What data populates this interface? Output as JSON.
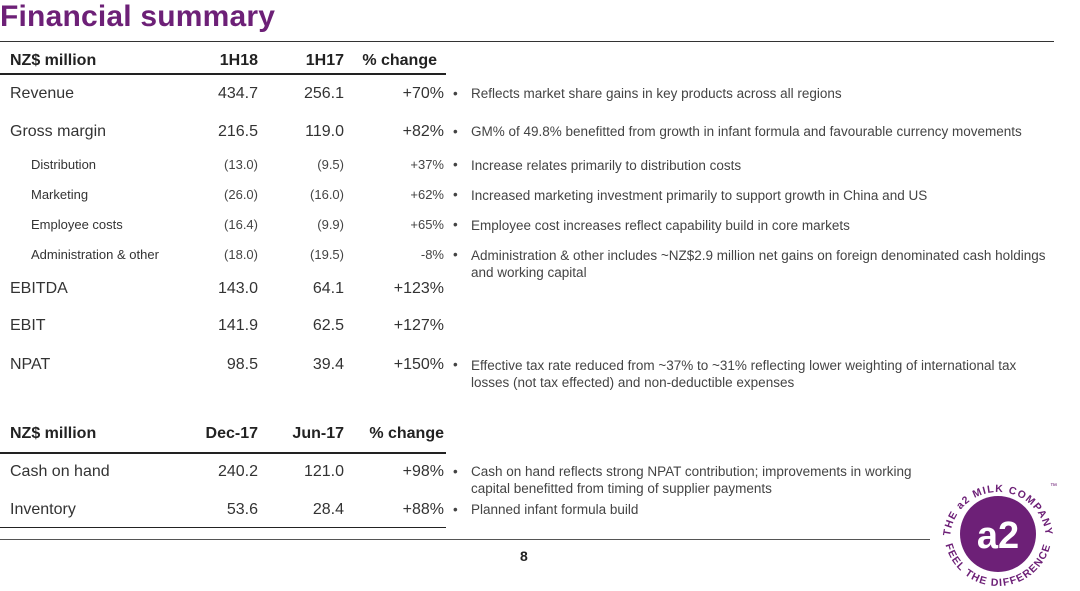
{
  "title": "Financial summary",
  "table1": {
    "headers": [
      "NZ$ million",
      "1H18",
      "1H17",
      "% change"
    ],
    "rows": [
      {
        "label": "Revenue",
        "v1": "434.7",
        "v2": "256.1",
        "chg": "+70%",
        "comment": "Reflects market share gains in key products across all regions"
      },
      {
        "label": "Gross margin",
        "v1": "216.5",
        "v2": "119.0",
        "chg": "+82%",
        "comment": "GM% of 49.8% benefitted from growth in infant formula and favourable currency movements"
      },
      {
        "label": "Distribution",
        "v1": "(13.0)",
        "v2": "(9.5)",
        "chg": "+37%",
        "comment": "Increase relates primarily to distribution costs"
      },
      {
        "label": "Marketing",
        "v1": "(26.0)",
        "v2": "(16.0)",
        "chg": "+62%",
        "comment": "Increased marketing investment primarily to support growth in China and US"
      },
      {
        "label": "Employee costs",
        "v1": "(16.4)",
        "v2": "(9.9)",
        "chg": "+65%",
        "comment": "Employee cost increases reflect capability build in core markets"
      },
      {
        "label": "Administration & other",
        "v1": "(18.0)",
        "v2": "(19.5)",
        "chg": "-8%",
        "comment": "Administration & other includes ~NZ$2.9 million net gains on foreign denominated cash holdings and working capital"
      },
      {
        "label": "EBITDA",
        "v1": "143.0",
        "v2": "64.1",
        "chg": "+123%",
        "comment": ""
      },
      {
        "label": "EBIT",
        "v1": "141.9",
        "v2": "62.5",
        "chg": "+127%",
        "comment": ""
      },
      {
        "label": "NPAT",
        "v1": "98.5",
        "v2": "39.4",
        "chg": "+150%",
        "comment": "Effective tax rate reduced from ~37% to ~31% reflecting lower weighting of international tax losses (not tax effected) and non-deductible expenses"
      }
    ]
  },
  "table2": {
    "headers": [
      "NZ$ million",
      "Dec-17",
      "Jun-17",
      "% change"
    ],
    "rows": [
      {
        "label": "Cash on hand",
        "v1": "240.2",
        "v2": "121.0",
        "chg": "+98%",
        "comment": "Cash on hand reflects strong NPAT contribution; improvements in working capital benefitted from timing of supplier payments"
      },
      {
        "label": "Inventory",
        "v1": "53.6",
        "v2": "28.4",
        "chg": "+88%",
        "comment": "Planned infant formula build"
      }
    ]
  },
  "bullet": "•",
  "page_number": "8",
  "logo": {
    "mark": "a2",
    "ring_top": "THE a2 MILK COMPANY",
    "ring_bottom": "FEEL THE DIFFERENCE",
    "tm": "™"
  },
  "colors": {
    "brand": "#6d2077"
  }
}
